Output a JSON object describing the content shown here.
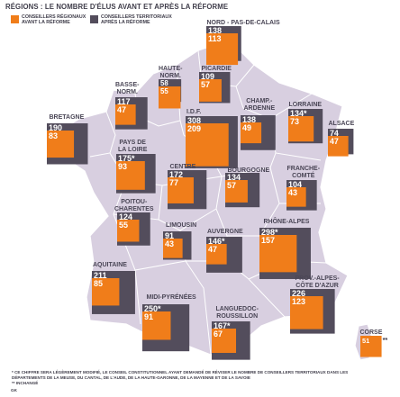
{
  "title": "RÉGIONS : LE NOMBRE D'ÉLUS AVANT ET APRÈS LA RÉFORME",
  "legend": {
    "regional": "CONSEILLERS RÉGIONAUX AVANT LA RÉFORME",
    "territorial": "CONSEILLERS TERRITORIAUX APRÈS LA RÉFORME"
  },
  "colors": {
    "regional": "#f07d1a",
    "territorial": "#534d5c",
    "land": "#d8cfe0",
    "border": "#ffffff",
    "text": "#3f3d4a"
  },
  "regions": [
    {
      "id": "nord-pas-de-calais",
      "name": "NORD - PAS-DE-CALAIS",
      "regional": "113",
      "territorial": "138"
    },
    {
      "id": "haute-normandie",
      "name": "HAUTE-\nNORM.",
      "regional": "55",
      "territorial": "58"
    },
    {
      "id": "picardie",
      "name": "PICARDIE",
      "regional": "57",
      "territorial": "109"
    },
    {
      "id": "basse-normandie",
      "name": "BASSE-\nNORM.",
      "regional": "47",
      "territorial": "117"
    },
    {
      "id": "bretagne",
      "name": "BRETAGNE",
      "regional": "83",
      "territorial": "190"
    },
    {
      "id": "ile-de-france",
      "name": "I.D.F.",
      "regional": "209",
      "territorial": "308"
    },
    {
      "id": "champagne-ardenne",
      "name": "CHAMP.-\nARDENNE",
      "regional": "49",
      "territorial": "138"
    },
    {
      "id": "lorraine",
      "name": "LORRAINE",
      "regional": "73",
      "territorial": "134*"
    },
    {
      "id": "alsace",
      "name": "ALSACE",
      "regional": "47",
      "territorial": "74"
    },
    {
      "id": "pays-de-la-loire",
      "name": "PAYS DE\nLA LOIRE",
      "regional": "93",
      "territorial": "175*"
    },
    {
      "id": "centre",
      "name": "CENTRE",
      "regional": "77",
      "territorial": "172"
    },
    {
      "id": "bourgogne",
      "name": "BOURGOGNE",
      "regional": "57",
      "territorial": "134"
    },
    {
      "id": "franche-comte",
      "name": "FRANCHE-\nCOMTÉ",
      "regional": "43",
      "territorial": "104"
    },
    {
      "id": "poitou-charentes",
      "name": "POITOU-\nCHARENTES",
      "regional": "55",
      "territorial": "124"
    },
    {
      "id": "limousin",
      "name": "LIMOUSIN",
      "regional": "43",
      "territorial": "91"
    },
    {
      "id": "auvergne",
      "name": "AUVERGNE",
      "regional": "47",
      "territorial": "146*"
    },
    {
      "id": "rhone-alpes",
      "name": "RHÔNE-ALPES",
      "regional": "157",
      "territorial": "298*"
    },
    {
      "id": "aquitaine",
      "name": "AQUITAINE",
      "regional": "85",
      "territorial": "211"
    },
    {
      "id": "midi-pyrenees",
      "name": "MIDI-PYRÉNÉES",
      "regional": "91",
      "territorial": "250*"
    },
    {
      "id": "languedoc-roussillon",
      "name": "LANGUEDOC-\nROUSSILLON",
      "regional": "67",
      "territorial": "167*"
    },
    {
      "id": "provence-alpes-cote-dazur",
      "name": "PROV.-ALPES-\nCÔTE D'AZUR",
      "regional": "123",
      "territorial": "226"
    },
    {
      "id": "corse",
      "name": "CORSE",
      "regional": "51",
      "territorial": "**"
    }
  ],
  "notes": {
    "asterisk": "* CE CHIFFRE SERA LÉGÈREMENT MODIFIÉ, LE CONSEIL CONSTITUTIONNEL AYANT DEMANDÉ DE RÉVISER LE NOMBRE DE CONSEILLERS TERRITORIAUX DANS LES DÉPARTEMENTS DE LA MEUSE, DU CANTAL, DE L'AUDE, DE LA HAUTE-GARONNE, DE LA MAYENNE ET DE LA SAVOIE",
    "double_asterisk": "** INCHANGÉ",
    "source": "GK"
  }
}
